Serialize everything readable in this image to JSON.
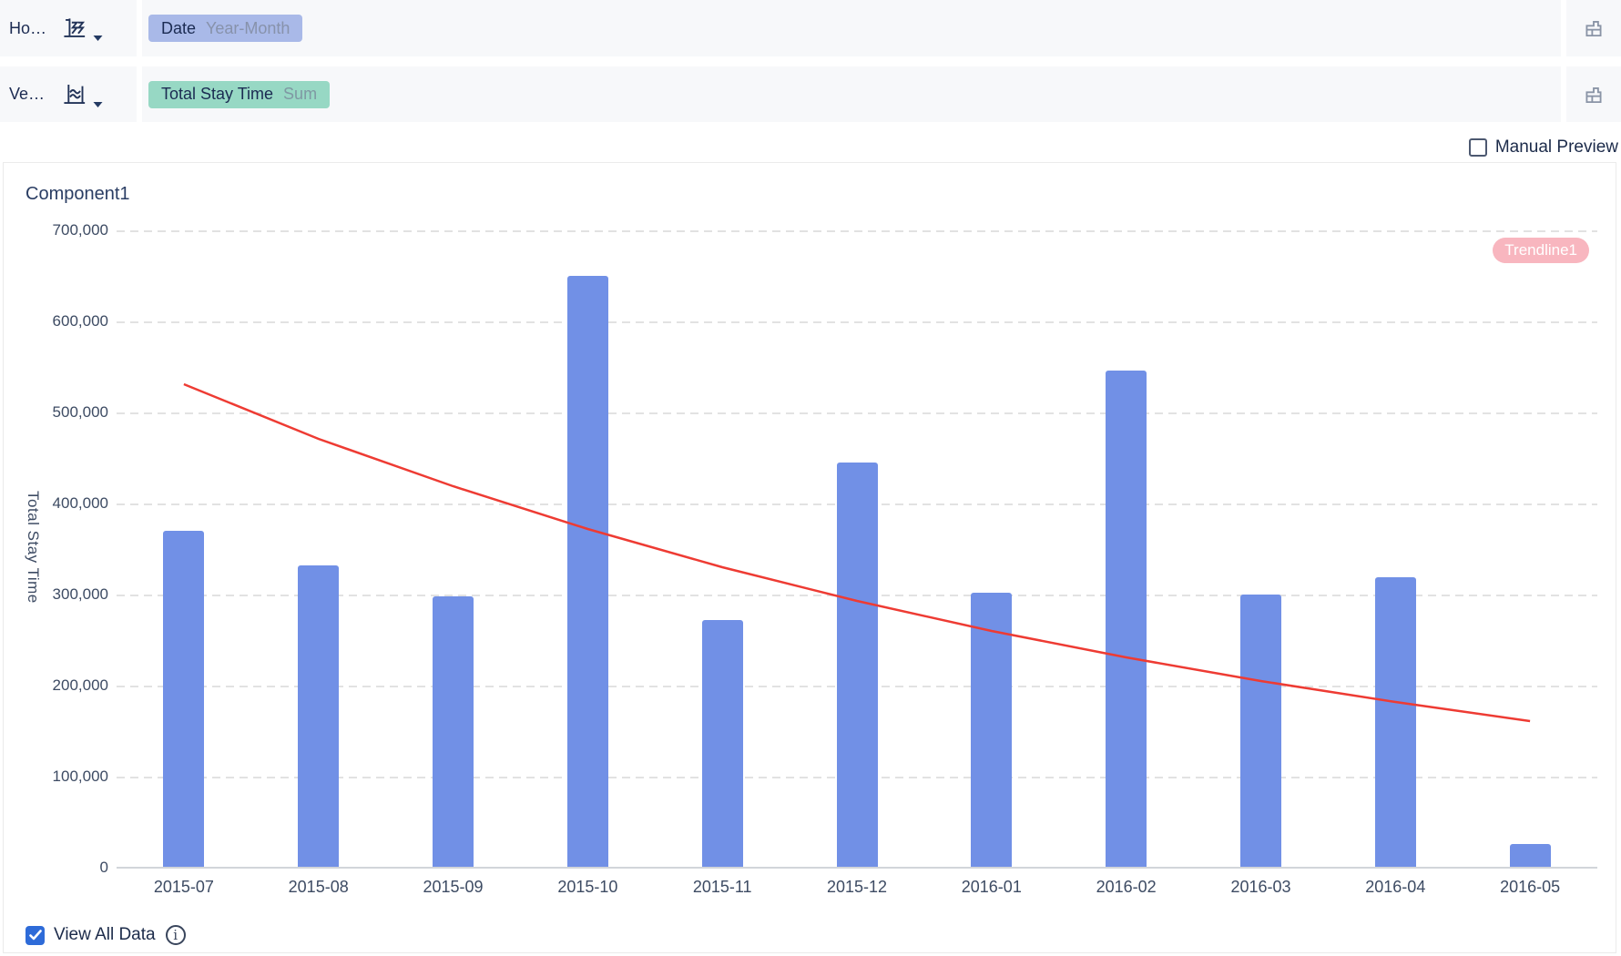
{
  "toolbar": {
    "horizontal": {
      "label": "Ho…",
      "pill": {
        "name": "Date",
        "subtype": "Year-Month"
      }
    },
    "vertical": {
      "label": "Ve…",
      "pill": {
        "name": "Total Stay Time",
        "agg": "Sum"
      }
    },
    "manual_preview_label": "Manual Preview",
    "manual_preview_checked": false
  },
  "chart": {
    "title": "Component1",
    "trendline_badge": "Trendline1",
    "y_axis_name": "Total Stay Time"
  },
  "footer": {
    "view_all_data_label": "View All Data",
    "view_all_data_checked": true,
    "info_glyph": "i"
  },
  "colors": {
    "bar_blue": "#7190e6",
    "trendline_red": "#ee3b33",
    "dimension_pill_bg": "#a9b9e8",
    "measure_pill_bg": "#97d8c4",
    "pill_text": "#1b2b52",
    "checkbox_blue": "#2e6bd8",
    "trendline_badge_bg": "#f8b6bf",
    "toolbar_row_bg": "#f7f8fa",
    "panel_border": "#ebebeb",
    "axis_text": "#3d4b63"
  },
  "chart_data": {
    "type": "bar",
    "title": "Component1",
    "categories": [
      "2015-07",
      "2015-08",
      "2015-09",
      "2015-10",
      "2015-11",
      "2015-12",
      "2016-01",
      "2016-02",
      "2016-03",
      "2016-04",
      "2016-05"
    ],
    "series": [
      {
        "name": "Total Stay Time (Sum)",
        "type": "bar",
        "values": [
          371000,
          333000,
          299000,
          651000,
          273000,
          446000,
          303000,
          547000,
          301000,
          320000,
          27000
        ]
      },
      {
        "name": "Trendline1",
        "type": "line",
        "values": [
          532000,
          472000,
          420000,
          373000,
          331000,
          294000,
          261000,
          232000,
          206000,
          183000,
          162000
        ]
      }
    ],
    "xlabel": "Date (Year-Month)",
    "ylabel": "Total Stay Time",
    "ylim": [
      0,
      700000
    ],
    "yticks": [
      0,
      100000,
      200000,
      300000,
      400000,
      500000,
      600000,
      700000
    ],
    "grid": "horizontal-dashed",
    "legend_position": "none",
    "bar_color": "#7190e6",
    "trend_color": "#ee3b33"
  }
}
